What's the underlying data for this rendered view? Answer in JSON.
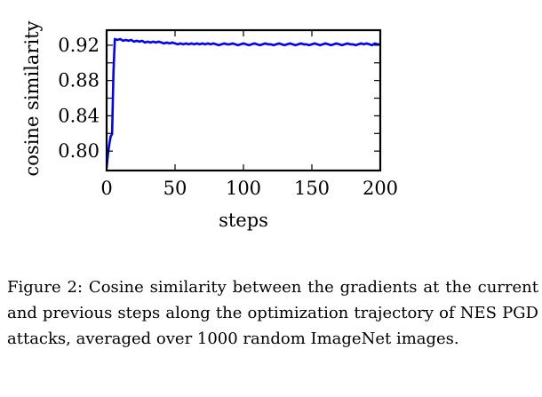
{
  "chart_data": {
    "type": "line",
    "title": "",
    "xlabel": "steps",
    "ylabel": "cosine similarity",
    "xlim": [
      0,
      200
    ],
    "ylim": [
      0.778,
      0.937
    ],
    "xticks": [
      0,
      50,
      100,
      150,
      200
    ],
    "xtick_labels": [
      "0",
      "50",
      "100",
      "150",
      "200"
    ],
    "yticks": [
      0.8,
      0.84,
      0.88,
      0.92
    ],
    "ytick_labels": [
      "0.80",
      "0.84",
      "0.88",
      "0.92"
    ],
    "grid": false,
    "legend": "none",
    "series": [
      {
        "color": "#0000ff",
        "x": [
          0,
          1,
          2,
          3,
          4,
          5,
          6,
          8,
          10,
          12,
          14,
          16,
          18,
          20,
          22,
          24,
          26,
          28,
          30,
          32,
          34,
          36,
          38,
          40,
          42,
          44,
          46,
          48,
          50,
          52,
          54,
          56,
          58,
          60,
          62,
          64,
          66,
          68,
          70,
          72,
          74,
          76,
          78,
          80,
          82,
          84,
          86,
          88,
          90,
          92,
          94,
          96,
          98,
          100,
          102,
          104,
          106,
          108,
          110,
          112,
          114,
          116,
          118,
          120,
          122,
          124,
          126,
          128,
          130,
          132,
          134,
          136,
          138,
          140,
          142,
          144,
          146,
          148,
          150,
          152,
          154,
          156,
          158,
          160,
          162,
          164,
          166,
          168,
          170,
          172,
          174,
          176,
          178,
          180,
          182,
          184,
          186,
          188,
          190,
          192,
          194,
          196,
          198,
          200
        ],
        "y": [
          0.781,
          0.797,
          0.808,
          0.817,
          0.819,
          0.889,
          0.927,
          0.926,
          0.927,
          0.925,
          0.926,
          0.925,
          0.926,
          0.924,
          0.925,
          0.924,
          0.925,
          0.923,
          0.924,
          0.923,
          0.924,
          0.923,
          0.924,
          0.923,
          0.922,
          0.923,
          0.922,
          0.923,
          0.922,
          0.921,
          0.922,
          0.921,
          0.922,
          0.921,
          0.922,
          0.921,
          0.922,
          0.921,
          0.922,
          0.921,
          0.922,
          0.921,
          0.922,
          0.921,
          0.92,
          0.921,
          0.922,
          0.921,
          0.921,
          0.922,
          0.921,
          0.92,
          0.921,
          0.922,
          0.921,
          0.92,
          0.921,
          0.922,
          0.921,
          0.92,
          0.921,
          0.922,
          0.921,
          0.921,
          0.92,
          0.921,
          0.922,
          0.921,
          0.92,
          0.921,
          0.922,
          0.921,
          0.92,
          0.921,
          0.922,
          0.921,
          0.921,
          0.92,
          0.921,
          0.922,
          0.921,
          0.92,
          0.921,
          0.922,
          0.921,
          0.92,
          0.921,
          0.922,
          0.921,
          0.92,
          0.921,
          0.922,
          0.921,
          0.921,
          0.92,
          0.921,
          0.922,
          0.921,
          0.922,
          0.921,
          0.92,
          0.922,
          0.921,
          0.921
        ]
      }
    ]
  },
  "caption": "Figure 2: Cosine similarity between the gradients at the current and previous steps along the optimization trajectory of NES PGD attacks, averaged over 1000 random ImageNet images."
}
